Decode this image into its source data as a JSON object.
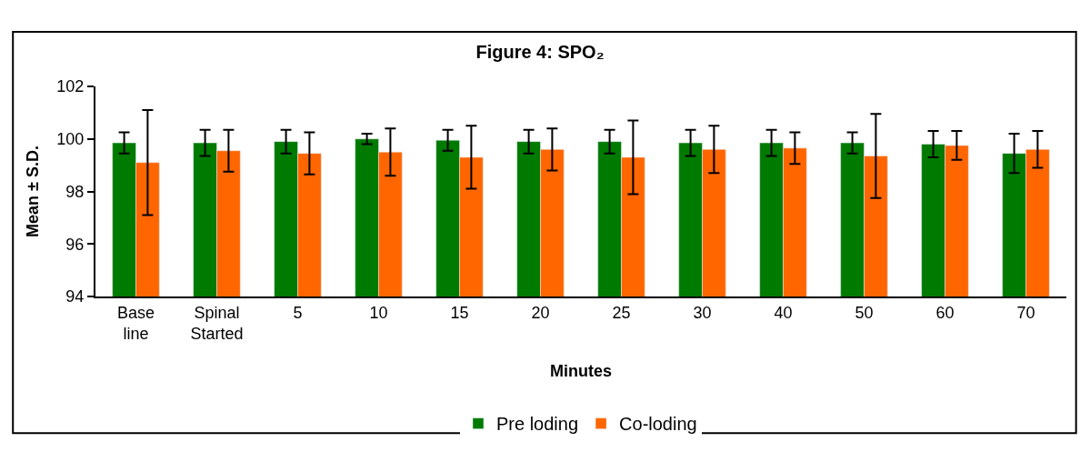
{
  "chart_data": {
    "type": "bar",
    "title": "Figure 4: SPO₂",
    "xlabel": "Minutes",
    "ylabel": "Mean ± S.D.",
    "categories": [
      "Base line",
      "Spinal Started",
      "5",
      "10",
      "15",
      "20",
      "25",
      "30",
      "40",
      "50",
      "60",
      "70"
    ],
    "series": [
      {
        "name": "Pre loding",
        "color": "#007a00",
        "values": [
          99.85,
          99.85,
          99.9,
          100.0,
          99.95,
          99.9,
          99.9,
          99.85,
          99.85,
          99.85,
          99.8,
          99.45
        ],
        "errors": [
          0.4,
          0.5,
          0.45,
          0.2,
          0.4,
          0.45,
          0.45,
          0.5,
          0.5,
          0.4,
          0.5,
          0.75
        ]
      },
      {
        "name": "Co-loding",
        "color": "#ff6600",
        "values": [
          99.1,
          99.55,
          99.45,
          99.5,
          99.3,
          99.6,
          99.3,
          99.6,
          99.65,
          99.35,
          99.75,
          99.6
        ],
        "errors": [
          2.0,
          0.8,
          0.8,
          0.9,
          1.2,
          0.8,
          1.4,
          0.9,
          0.6,
          1.6,
          0.55,
          0.7
        ]
      }
    ],
    "ylim": [
      94,
      102
    ],
    "yticks": [
      94,
      96,
      98,
      100,
      102
    ],
    "grid": false,
    "legend": "bottom"
  }
}
